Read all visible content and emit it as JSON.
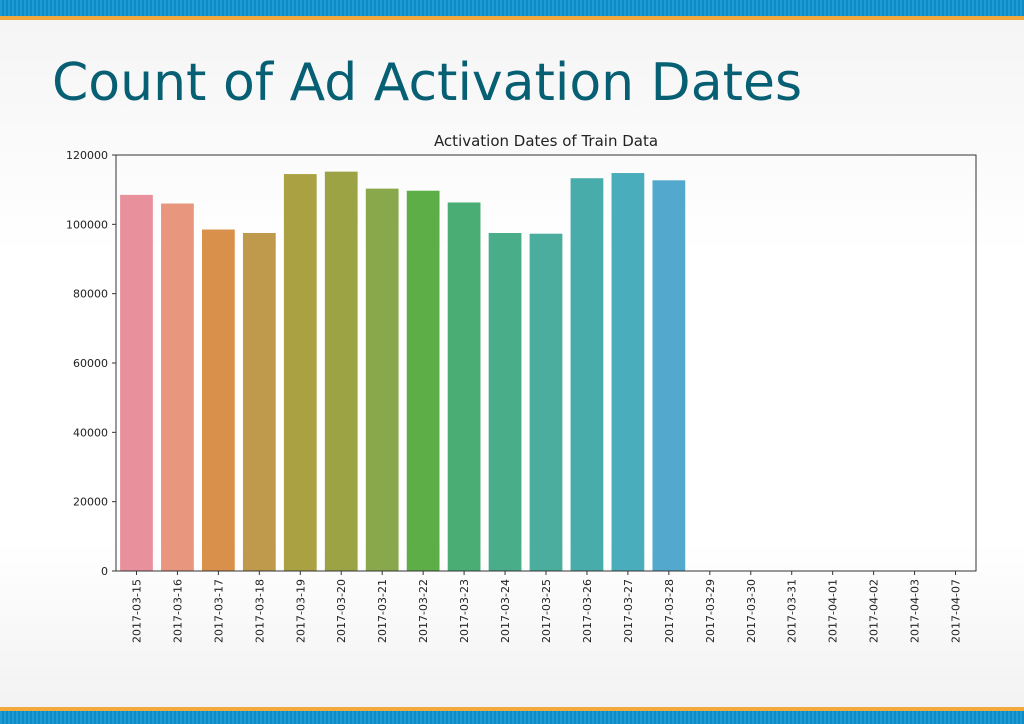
{
  "slide": {
    "title": "Count of Ad Activation Dates",
    "band_color": "#1a9bd3",
    "accent_color": "#f2a93b",
    "title_color": "#075f73"
  },
  "chart_data": {
    "type": "bar",
    "title": "Activation Dates of Train Data",
    "xlabel": "",
    "ylabel": "",
    "categories": [
      "2017-03-15",
      "2017-03-16",
      "2017-03-17",
      "2017-03-18",
      "2017-03-19",
      "2017-03-20",
      "2017-03-21",
      "2017-03-22",
      "2017-03-23",
      "2017-03-24",
      "2017-03-25",
      "2017-03-26",
      "2017-03-27",
      "2017-03-28",
      "2017-03-29",
      "2017-03-30",
      "2017-03-31",
      "2017-04-01",
      "2017-04-02",
      "2017-04-03",
      "2017-04-07"
    ],
    "values": [
      108500,
      106000,
      98500,
      97500,
      114500,
      115200,
      110300,
      109700,
      106300,
      97500,
      97300,
      113300,
      114800,
      112700,
      10,
      10,
      10,
      10,
      10,
      10,
      10
    ],
    "colors": [
      "#e8919d",
      "#e8977e",
      "#d8904a",
      "#c09a4c",
      "#aaa242",
      "#9ca345",
      "#89a84b",
      "#5eae48",
      "#4aad74",
      "#49ad8a",
      "#4aad9e",
      "#48acaa",
      "#4aadbb",
      "#52a9cd",
      "#6aa0e0",
      "#8a98e8",
      "#a28ce8",
      "#bb82e0",
      "#d47ed6",
      "#e182c0",
      "#e88aaa"
    ],
    "yticks": [
      0,
      20000,
      40000,
      60000,
      80000,
      100000,
      120000
    ],
    "ylim": [
      0,
      120000
    ],
    "grid": false,
    "legend": "none"
  }
}
